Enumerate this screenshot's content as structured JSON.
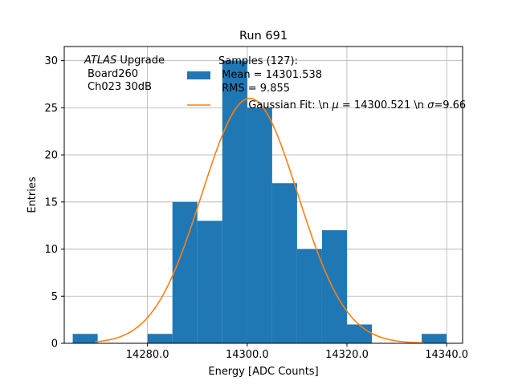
{
  "chart_data": {
    "type": "bar",
    "title": "Run 691",
    "xlabel": "Energy [ADC Counts]",
    "ylabel": "Entries",
    "xlim": [
      14263.3,
      14343.2
    ],
    "ylim": [
      0,
      31.5
    ],
    "grid": true,
    "bin_edges": [
      14265,
      14270,
      14275,
      14280,
      14285,
      14290,
      14295,
      14300,
      14305,
      14310,
      14315,
      14320,
      14325,
      14330,
      14335,
      14340
    ],
    "values": [
      1,
      0,
      0,
      1,
      15,
      13,
      30,
      25,
      17,
      10,
      12,
      2,
      0,
      0,
      1
    ],
    "xticks": [
      14280.0,
      14300.0,
      14320.0,
      14340.0
    ],
    "xtick_labels": [
      "14280.0",
      "14300.0",
      "14320.0",
      "14340.0"
    ],
    "yticks": [
      0,
      5,
      10,
      15,
      20,
      25,
      30
    ],
    "ytick_labels": [
      "0",
      "5",
      "10",
      "15",
      "20",
      "25",
      "30"
    ],
    "fit": {
      "type": "gaussian",
      "amplitude": 26.0,
      "mu": 14300.521,
      "sigma": 9.66,
      "x_range": [
        14269.5,
        14335.5
      ]
    },
    "annotation": {
      "italic": "ATLAS",
      "line1_rest": " Upgrade",
      "line2": "Board260",
      "line3": "Ch023 30dB"
    },
    "legend": {
      "location": "upper-right",
      "histogram_label_lines": [
        "Samples (127):",
        " Mean = 14301.538",
        " RMS = 9.855"
      ],
      "fit_label_prefix": "Gaussian Fit: \\n ",
      "fit_label_mu_symbol": "μ",
      "fit_label_mid": " = 14300.521 \\n ",
      "fit_label_sigma_symbol": "σ",
      "fit_label_suffix": "=9.66"
    },
    "colors": {
      "histogram": "#1f77b4",
      "fit": "#ff7f0e",
      "grid": "#b0b0b0",
      "axes": "#000000"
    }
  }
}
